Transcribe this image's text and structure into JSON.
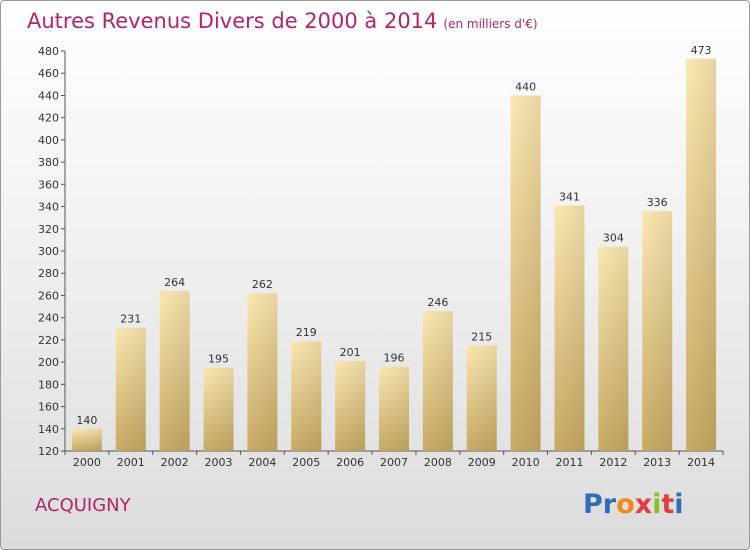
{
  "title": "Autres Revenus Divers de 2000 à 2014",
  "unit_label": "(en milliers d'€)",
  "commune": "ACQUIGNY",
  "logo": {
    "letters": [
      "P",
      "r",
      "o",
      "x",
      "i",
      "t",
      "i"
    ],
    "colors": [
      "#2f6db5",
      "#2f6db5",
      "#f08a1c",
      "#e33c3c",
      "#8bbf2a",
      "#e33c3c",
      "#2f6db5"
    ]
  },
  "colors": {
    "accent": "#b3246a",
    "bar_light": "#f9e2a6",
    "bar_dark": "#c6a862"
  },
  "chart_data": {
    "type": "bar",
    "title": "Autres Revenus Divers de 2000 à 2014",
    "ylabel": "",
    "xlabel": "",
    "categories": [
      "2000",
      "2001",
      "2002",
      "2003",
      "2004",
      "2005",
      "2006",
      "2007",
      "2008",
      "2009",
      "2010",
      "2011",
      "2012",
      "2013",
      "2014"
    ],
    "values": [
      140,
      231,
      264,
      195,
      262,
      219,
      201,
      196,
      246,
      215,
      440,
      341,
      304,
      336,
      473
    ],
    "ylim": [
      120,
      480
    ],
    "yticks": [
      120,
      140,
      160,
      180,
      200,
      220,
      240,
      260,
      280,
      300,
      320,
      340,
      360,
      380,
      400,
      420,
      440,
      460,
      480
    ],
    "grid": false,
    "legend": "none"
  }
}
